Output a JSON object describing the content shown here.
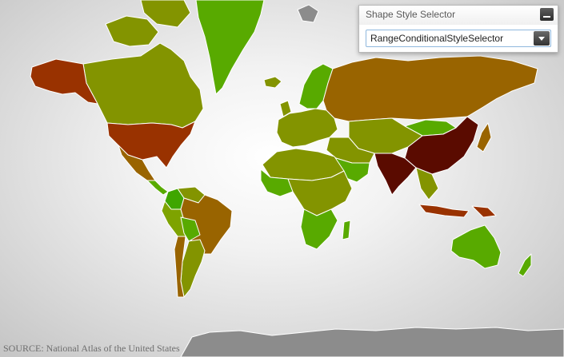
{
  "panel": {
    "title": "Shape Style Selector",
    "minimize_icon": "minimize-icon",
    "selector": {
      "value": "RangeConditionalStyleSelector",
      "dropdown_icon": "chevron-down-icon"
    }
  },
  "map": {
    "source": "SOURCE: National Atlas of the United States",
    "colors": {
      "darkred": "#5a0b00",
      "brownred": "#993200",
      "brown": "#996400",
      "olive": "#839400",
      "yellowgreen": "#7ea300",
      "green": "#58aa00",
      "brightgreen": "#3fa600",
      "gray": "#8c8c8c"
    },
    "regions": [
      {
        "name": "greenland",
        "color": "green"
      },
      {
        "name": "canada",
        "color": "olive"
      },
      {
        "name": "alaska",
        "color": "brownred"
      },
      {
        "name": "usa",
        "color": "brownred"
      },
      {
        "name": "mexico",
        "color": "brown"
      },
      {
        "name": "central-america",
        "color": "green"
      },
      {
        "name": "colombia",
        "color": "brightgreen"
      },
      {
        "name": "venezuela",
        "color": "olive"
      },
      {
        "name": "brazil",
        "color": "brown"
      },
      {
        "name": "peru",
        "color": "yellowgreen"
      },
      {
        "name": "bolivia",
        "color": "green"
      },
      {
        "name": "argentina",
        "color": "olive"
      },
      {
        "name": "chile",
        "color": "brown"
      },
      {
        "name": "europe-west",
        "color": "olive"
      },
      {
        "name": "scandinavia",
        "color": "green"
      },
      {
        "name": "iceland",
        "color": "olive"
      },
      {
        "name": "russia",
        "color": "brown"
      },
      {
        "name": "africa-north",
        "color": "olive"
      },
      {
        "name": "africa-west",
        "color": "green"
      },
      {
        "name": "africa-central",
        "color": "olive"
      },
      {
        "name": "africa-south",
        "color": "green"
      },
      {
        "name": "madagascar",
        "color": "green"
      },
      {
        "name": "middle-east",
        "color": "olive"
      },
      {
        "name": "arabia",
        "color": "green"
      },
      {
        "name": "central-asia",
        "color": "olive"
      },
      {
        "name": "china",
        "color": "darkred"
      },
      {
        "name": "india",
        "color": "darkred"
      },
      {
        "name": "mongolia",
        "color": "green"
      },
      {
        "name": "southeast-asia",
        "color": "olive"
      },
      {
        "name": "japan",
        "color": "brown"
      },
      {
        "name": "indonesia",
        "color": "brownred"
      },
      {
        "name": "papua",
        "color": "brownred"
      },
      {
        "name": "australia",
        "color": "green"
      },
      {
        "name": "new-zealand",
        "color": "green"
      },
      {
        "name": "svalbard",
        "color": "gray"
      },
      {
        "name": "antarctica",
        "color": "gray"
      }
    ]
  }
}
